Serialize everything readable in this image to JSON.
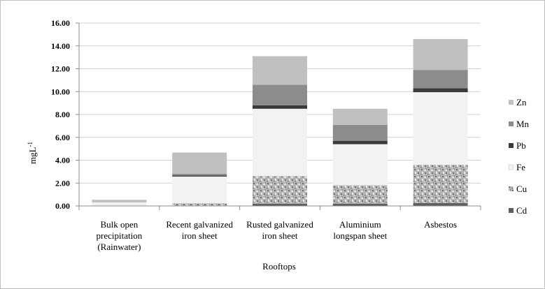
{
  "chart_data": {
    "type": "bar",
    "stacked": true,
    "title": "",
    "xlabel": "Rooftops",
    "ylabel": "mgL-1",
    "ylabel_main": "mgL",
    "ylabel_sup": "-1",
    "ylim": [
      0,
      16
    ],
    "yticks": [
      "0.00",
      "2.00",
      "4.00",
      "6.00",
      "8.00",
      "10.00",
      "12.00",
      "14.00",
      "16.00"
    ],
    "grid": true,
    "legend_position": "right",
    "categories": [
      [
        "Bulk open",
        "precipitation",
        "(Rainwater)"
      ],
      [
        "Recent galvanized",
        "iron sheet"
      ],
      [
        "Rusted galvanized",
        "iron sheet"
      ],
      [
        "Aluminium",
        "longspan sheet"
      ],
      [
        "Asbestos"
      ]
    ],
    "series": [
      {
        "name": "Cd",
        "color": "#5f5f5f",
        "values": [
          0.0,
          0.02,
          0.2,
          0.2,
          0.25
        ]
      },
      {
        "name": "Cu",
        "color": "#a8a8a8",
        "pattern": "granite",
        "values": [
          0.02,
          0.2,
          2.4,
          1.6,
          3.35
        ]
      },
      {
        "name": "Fe",
        "color": "#f2f2f2",
        "values": [
          0.3,
          2.35,
          5.9,
          3.6,
          6.35
        ]
      },
      {
        "name": "Pb",
        "color": "#3a3a3a",
        "values": [
          0.0,
          0.1,
          0.3,
          0.3,
          0.35
        ]
      },
      {
        "name": "Mn",
        "color": "#8c8c8c",
        "values": [
          0.02,
          0.15,
          1.8,
          1.4,
          1.6
        ]
      },
      {
        "name": "Zn",
        "color": "#c0c0c0",
        "values": [
          0.2,
          1.85,
          2.5,
          1.4,
          2.7
        ]
      }
    ],
    "legend_order": [
      "Zn",
      "Mn",
      "Pb",
      "Fe",
      "Cu",
      "Cd"
    ]
  }
}
